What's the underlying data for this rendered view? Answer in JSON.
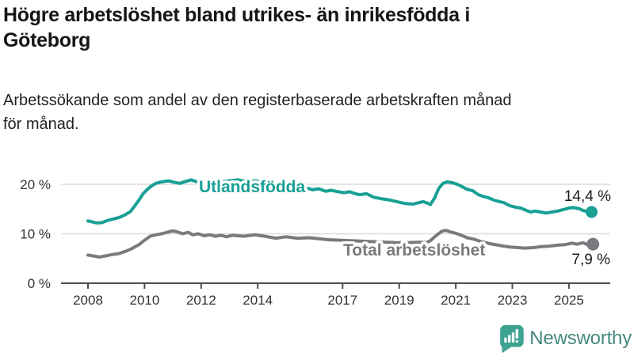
{
  "header": {
    "title_lines": [
      "Högre arbetslöshet bland utrikes- än inrikesfödda i",
      "Göteborg"
    ],
    "subtitle_lines": [
      "Arbetssökande som andel av den registerbaserade arbetskraften månad",
      "för månad."
    ]
  },
  "chart_data": {
    "type": "line",
    "unit": "%",
    "grid": "horizontal",
    "xlim": [
      2007.9,
      2026.0
    ],
    "ylim": [
      0,
      22.5
    ],
    "x_ticks": [
      "2008",
      "2010",
      "2012",
      "2014",
      "2017",
      "2019",
      "2021",
      "2023",
      "2025"
    ],
    "x_tick_years": [
      2008,
      2010,
      2012,
      2014,
      2017,
      2019,
      2021,
      2023,
      2025
    ],
    "y_ticks": [
      {
        "value": 0,
        "label": "0 %"
      },
      {
        "value": 10,
        "label": "10 %"
      },
      {
        "value": 20,
        "label": "20 %"
      }
    ],
    "series": [
      {
        "name": "Utlandsfödda",
        "color": "#18A095",
        "end_label": "14,4 %",
        "end_value": 14.4,
        "points": [
          [
            2008.0,
            12.6
          ],
          [
            2008.15,
            12.4
          ],
          [
            2008.3,
            12.2
          ],
          [
            2008.5,
            12.25
          ],
          [
            2008.7,
            12.7
          ],
          [
            2008.9,
            13.0
          ],
          [
            2009.1,
            13.3
          ],
          [
            2009.3,
            13.8
          ],
          [
            2009.5,
            14.5
          ],
          [
            2009.65,
            15.6
          ],
          [
            2009.8,
            16.8
          ],
          [
            2009.95,
            18.1
          ],
          [
            2010.1,
            19.0
          ],
          [
            2010.25,
            19.7
          ],
          [
            2010.4,
            20.2
          ],
          [
            2010.6,
            20.5
          ],
          [
            2010.85,
            20.7
          ],
          [
            2011.05,
            20.4
          ],
          [
            2011.25,
            20.2
          ],
          [
            2011.45,
            20.6
          ],
          [
            2011.65,
            20.9
          ],
          [
            2011.85,
            20.5
          ],
          [
            2012.05,
            20.8
          ],
          [
            2012.25,
            20.4
          ],
          [
            2012.45,
            20.7
          ],
          [
            2012.6,
            20.3
          ],
          [
            2012.8,
            20.6
          ],
          [
            2013.0,
            20.7
          ],
          [
            2013.3,
            20.9
          ],
          [
            2013.6,
            20.6
          ],
          [
            2013.9,
            20.7
          ],
          [
            2014.2,
            20.5
          ],
          [
            2014.5,
            20.3
          ],
          [
            2014.8,
            20.1
          ],
          [
            2015.1,
            19.8
          ],
          [
            2015.4,
            19.6
          ],
          [
            2015.7,
            19.3
          ],
          [
            2015.95,
            18.9
          ],
          [
            2016.15,
            19.1
          ],
          [
            2016.4,
            18.6
          ],
          [
            2016.6,
            18.8
          ],
          [
            2016.85,
            18.5
          ],
          [
            2017.05,
            18.3
          ],
          [
            2017.25,
            18.5
          ],
          [
            2017.45,
            18.1
          ],
          [
            2017.6,
            17.9
          ],
          [
            2017.85,
            18.1
          ],
          [
            2018.1,
            17.4
          ],
          [
            2018.35,
            17.1
          ],
          [
            2018.6,
            16.9
          ],
          [
            2018.85,
            16.6
          ],
          [
            2019.05,
            16.3
          ],
          [
            2019.25,
            16.1
          ],
          [
            2019.5,
            16.0
          ],
          [
            2019.7,
            16.3
          ],
          [
            2019.85,
            16.5
          ],
          [
            2020.0,
            16.2
          ],
          [
            2020.1,
            15.9
          ],
          [
            2020.25,
            17.2
          ],
          [
            2020.4,
            19.2
          ],
          [
            2020.55,
            20.2
          ],
          [
            2020.7,
            20.5
          ],
          [
            2020.9,
            20.3
          ],
          [
            2021.05,
            20.0
          ],
          [
            2021.2,
            19.6
          ],
          [
            2021.4,
            19.0
          ],
          [
            2021.6,
            18.7
          ],
          [
            2021.8,
            17.9
          ],
          [
            2021.95,
            17.6
          ],
          [
            2022.15,
            17.3
          ],
          [
            2022.35,
            16.8
          ],
          [
            2022.55,
            16.5
          ],
          [
            2022.7,
            16.3
          ],
          [
            2022.9,
            15.7
          ],
          [
            2023.1,
            15.4
          ],
          [
            2023.3,
            15.2
          ],
          [
            2023.5,
            14.7
          ],
          [
            2023.65,
            14.4
          ],
          [
            2023.8,
            14.6
          ],
          [
            2024.0,
            14.4
          ],
          [
            2024.2,
            14.2
          ],
          [
            2024.4,
            14.4
          ],
          [
            2024.6,
            14.6
          ],
          [
            2024.8,
            14.9
          ],
          [
            2025.0,
            15.2
          ],
          [
            2025.15,
            15.3
          ],
          [
            2025.35,
            15.1
          ],
          [
            2025.5,
            14.7
          ],
          [
            2025.65,
            14.5
          ],
          [
            2025.8,
            14.4
          ]
        ]
      },
      {
        "name": "Total arbetslöshet",
        "color": "#7A7A7E",
        "end_label": "7,9 %",
        "end_value": 7.9,
        "points": [
          [
            2008.0,
            5.7
          ],
          [
            2008.2,
            5.5
          ],
          [
            2008.4,
            5.3
          ],
          [
            2008.6,
            5.5
          ],
          [
            2008.85,
            5.8
          ],
          [
            2009.1,
            6.0
          ],
          [
            2009.35,
            6.5
          ],
          [
            2009.55,
            7.0
          ],
          [
            2009.8,
            7.8
          ],
          [
            2010.0,
            8.7
          ],
          [
            2010.2,
            9.5
          ],
          [
            2010.4,
            9.8
          ],
          [
            2010.6,
            10.0
          ],
          [
            2010.8,
            10.3
          ],
          [
            2011.0,
            10.6
          ],
          [
            2011.15,
            10.4
          ],
          [
            2011.35,
            10.0
          ],
          [
            2011.55,
            10.3
          ],
          [
            2011.7,
            9.8
          ],
          [
            2011.9,
            10.0
          ],
          [
            2012.1,
            9.6
          ],
          [
            2012.3,
            9.8
          ],
          [
            2012.5,
            9.5
          ],
          [
            2012.7,
            9.7
          ],
          [
            2012.9,
            9.4
          ],
          [
            2013.1,
            9.7
          ],
          [
            2013.5,
            9.5
          ],
          [
            2013.9,
            9.8
          ],
          [
            2014.25,
            9.5
          ],
          [
            2014.65,
            9.1
          ],
          [
            2015.0,
            9.4
          ],
          [
            2015.4,
            9.1
          ],
          [
            2015.8,
            9.2
          ],
          [
            2016.15,
            9.0
          ],
          [
            2016.5,
            8.8
          ],
          [
            2016.9,
            8.7
          ],
          [
            2017.3,
            8.6
          ],
          [
            2017.7,
            8.5
          ],
          [
            2018.1,
            8.4
          ],
          [
            2018.5,
            8.3
          ],
          [
            2018.9,
            8.2
          ],
          [
            2019.3,
            8.2
          ],
          [
            2019.7,
            8.3
          ],
          [
            2019.95,
            8.2
          ],
          [
            2020.1,
            8.6
          ],
          [
            2020.3,
            9.6
          ],
          [
            2020.5,
            10.5
          ],
          [
            2020.65,
            10.7
          ],
          [
            2020.8,
            10.4
          ],
          [
            2021.0,
            10.1
          ],
          [
            2021.2,
            9.7
          ],
          [
            2021.4,
            9.2
          ],
          [
            2021.65,
            8.9
          ],
          [
            2021.9,
            8.4
          ],
          [
            2022.2,
            8.0
          ],
          [
            2022.5,
            7.7
          ],
          [
            2022.7,
            7.5
          ],
          [
            2022.95,
            7.3
          ],
          [
            2023.2,
            7.2
          ],
          [
            2023.45,
            7.1
          ],
          [
            2023.75,
            7.2
          ],
          [
            2024.0,
            7.4
          ],
          [
            2024.3,
            7.5
          ],
          [
            2024.6,
            7.7
          ],
          [
            2024.85,
            7.8
          ],
          [
            2025.1,
            8.1
          ],
          [
            2025.3,
            7.9
          ],
          [
            2025.5,
            8.2
          ],
          [
            2025.65,
            7.8
          ],
          [
            2025.85,
            7.9
          ]
        ]
      }
    ],
    "style": {
      "gridline_color": "#DCDCDC",
      "axis_color": "#4D4D4D",
      "value_label_color": "#1A1A1A"
    }
  },
  "footer": {
    "brand": "Newsworthy",
    "brand_color": "#45897F",
    "icon_color": "#3FA393",
    "icon": "bar-chart-speech-bubble"
  }
}
